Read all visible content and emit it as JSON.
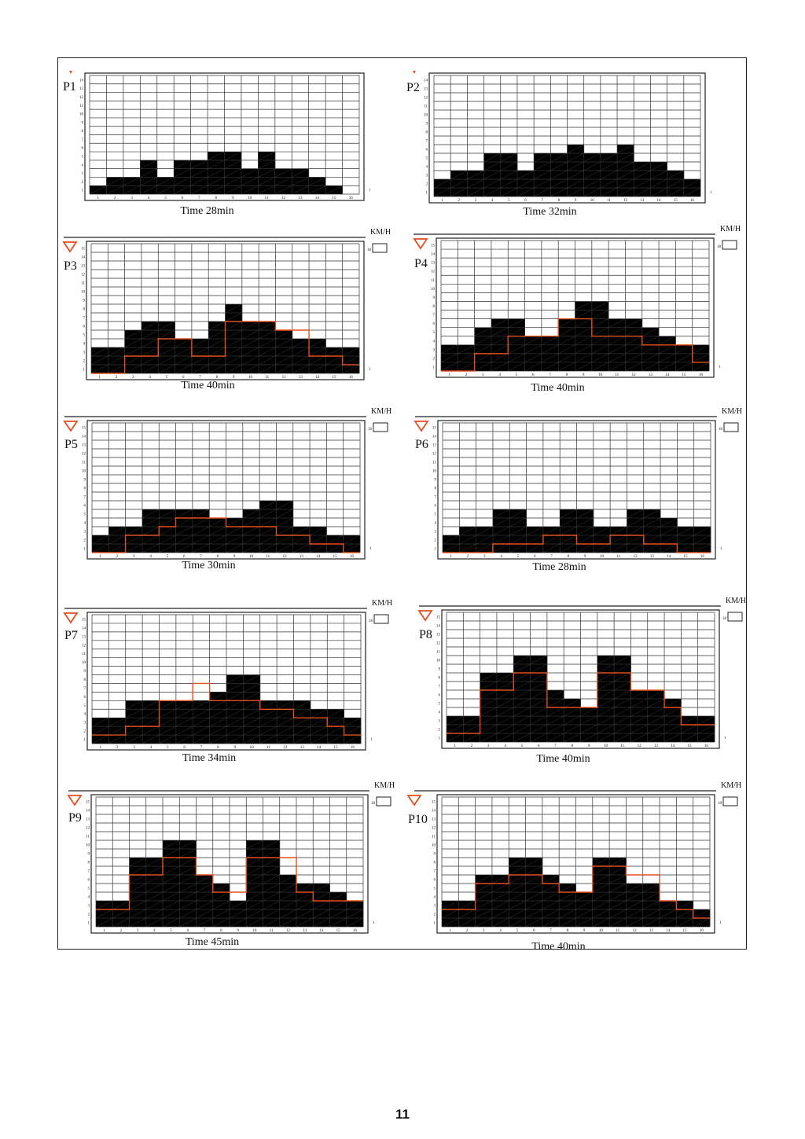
{
  "page": {
    "page_number": "11"
  },
  "chart_data": [
    {
      "type": "bar",
      "program": "P1",
      "time_label": "Time 28min",
      "show_speed_box": false,
      "show_triangle": false,
      "x": [
        1,
        2,
        3,
        4,
        5,
        6,
        7,
        8,
        9,
        10,
        11,
        12,
        13,
        14,
        15,
        16
      ],
      "y_ticks": [
        1,
        2,
        3,
        4,
        5,
        6,
        7,
        8,
        9,
        10,
        11,
        12,
        13,
        14
      ],
      "right_tick": "1",
      "ylim": [
        0,
        14
      ],
      "series": [
        {
          "role": "resistance",
          "values": [
            1,
            2,
            2,
            4,
            2,
            4,
            4,
            5,
            5,
            3,
            5,
            3,
            3,
            2,
            1,
            0
          ]
        }
      ]
    },
    {
      "type": "bar",
      "program": "P2",
      "time_label": "Time 32min",
      "show_speed_box": false,
      "show_triangle": false,
      "x": [
        1,
        2,
        3,
        4,
        5,
        6,
        7,
        8,
        9,
        10,
        11,
        12,
        13,
        14,
        15,
        16
      ],
      "y_ticks": [
        1,
        2,
        3,
        4,
        5,
        6,
        7,
        8,
        9,
        10,
        11,
        12,
        13,
        14
      ],
      "right_tick": "1",
      "ylim": [
        0,
        14
      ],
      "series": [
        {
          "role": "resistance",
          "values": [
            2,
            3,
            3,
            5,
            5,
            3,
            5,
            5,
            6,
            5,
            5,
            6,
            4,
            4,
            3,
            2
          ]
        }
      ]
    },
    {
      "type": "bar",
      "program": "P3",
      "time_label": "Time 40min",
      "speed_unit": "KM/H",
      "speed_tick": "18",
      "show_speed_box": true,
      "show_triangle": true,
      "x": [
        1,
        2,
        3,
        4,
        5,
        6,
        7,
        8,
        9,
        10,
        11,
        12,
        13,
        14,
        15,
        16
      ],
      "y_ticks": [
        1,
        2,
        3,
        4,
        5,
        6,
        7,
        8,
        9,
        10,
        11,
        12,
        13,
        14,
        15
      ],
      "right_tick": "1",
      "ylim": [
        0,
        15
      ],
      "series": [
        {
          "role": "resistance",
          "values": [
            3,
            3,
            5,
            6,
            6,
            4,
            4,
            6,
            8,
            6,
            6,
            5,
            4,
            4,
            3,
            3
          ]
        },
        {
          "role": "speed",
          "color": "#e0501e",
          "values": [
            0,
            0,
            2,
            2,
            4,
            4,
            2,
            2,
            6,
            6,
            6,
            5,
            5,
            2,
            2,
            1
          ]
        }
      ]
    },
    {
      "type": "bar",
      "program": "P4",
      "time_label": "Time 40min",
      "speed_unit": "KM/H",
      "speed_tick": "18",
      "show_speed_box": true,
      "show_triangle": true,
      "x": [
        1,
        2,
        3,
        4,
        5,
        6,
        7,
        8,
        9,
        10,
        11,
        12,
        13,
        14,
        15,
        16
      ],
      "y_ticks": [
        1,
        2,
        3,
        4,
        5,
        6,
        7,
        8,
        9,
        10,
        11,
        12,
        13,
        14,
        15
      ],
      "right_tick": "1",
      "ylim": [
        0,
        15
      ],
      "series": [
        {
          "role": "resistance",
          "values": [
            3,
            3,
            5,
            6,
            6,
            4,
            4,
            6,
            8,
            8,
            6,
            6,
            5,
            4,
            3,
            3
          ]
        },
        {
          "role": "speed",
          "color": "#e0501e",
          "values": [
            0,
            0,
            2,
            2,
            4,
            4,
            4,
            6,
            6,
            4,
            4,
            4,
            3,
            3,
            3,
            1
          ]
        }
      ]
    },
    {
      "type": "bar",
      "program": "P5",
      "time_label": "Time 30min",
      "speed_unit": "KM/H",
      "speed_tick": "16",
      "show_speed_box": true,
      "show_triangle": true,
      "x": [
        1,
        2,
        3,
        4,
        5,
        6,
        7,
        8,
        9,
        10,
        11,
        12,
        13,
        14,
        15,
        16
      ],
      "y_ticks": [
        1,
        2,
        3,
        4,
        5,
        6,
        7,
        8,
        9,
        10,
        11,
        12,
        13,
        14,
        15
      ],
      "right_tick": "1",
      "ylim": [
        0,
        15
      ],
      "series": [
        {
          "role": "resistance",
          "values": [
            2,
            3,
            3,
            5,
            5,
            5,
            5,
            4,
            4,
            5,
            6,
            6,
            3,
            3,
            2,
            2
          ]
        },
        {
          "role": "speed",
          "color": "#e0501e",
          "values": [
            0,
            0,
            2,
            2,
            3,
            4,
            4,
            4,
            3,
            3,
            3,
            2,
            2,
            1,
            1,
            0
          ]
        }
      ]
    },
    {
      "type": "bar",
      "program": "P6",
      "time_label": "Time 28min",
      "speed_unit": "KM/H",
      "speed_tick": "18",
      "show_speed_box": true,
      "show_triangle": true,
      "x": [
        1,
        2,
        3,
        4,
        5,
        6,
        7,
        8,
        9,
        10,
        11,
        12,
        13,
        14,
        15,
        16
      ],
      "y_ticks": [
        1,
        2,
        3,
        4,
        5,
        6,
        7,
        8,
        9,
        10,
        11,
        12,
        13,
        14,
        15
      ],
      "right_tick": "1",
      "ylim": [
        0,
        15
      ],
      "series": [
        {
          "role": "resistance",
          "values": [
            2,
            3,
            3,
            5,
            5,
            3,
            3,
            5,
            5,
            3,
            3,
            5,
            5,
            4,
            3,
            3
          ]
        },
        {
          "role": "speed",
          "color": "#e0501e",
          "values": [
            0,
            0,
            0,
            1,
            1,
            1,
            2,
            2,
            1,
            1,
            2,
            2,
            1,
            1,
            0,
            0
          ]
        }
      ]
    },
    {
      "type": "bar",
      "program": "P7",
      "time_label": "Time 34min",
      "speed_unit": "KM/H",
      "speed_tick": "18",
      "show_speed_box": true,
      "show_triangle": true,
      "x": [
        1,
        2,
        3,
        4,
        5,
        6,
        7,
        8,
        9,
        10,
        11,
        12,
        13,
        14,
        15,
        16
      ],
      "y_ticks": [
        1,
        2,
        3,
        4,
        5,
        6,
        7,
        8,
        9,
        10,
        11,
        12,
        13,
        14,
        15
      ],
      "right_tick": "1",
      "ylim": [
        0,
        15
      ],
      "series": [
        {
          "role": "resistance",
          "values": [
            3,
            3,
            5,
            5,
            5,
            5,
            5,
            6,
            8,
            8,
            5,
            5,
            5,
            4,
            4,
            3
          ]
        },
        {
          "role": "speed",
          "color": "#e0501e",
          "values": [
            1,
            1,
            2,
            2,
            5,
            5,
            7,
            5,
            5,
            5,
            4,
            4,
            3,
            3,
            2,
            1
          ]
        }
      ]
    },
    {
      "type": "bar",
      "program": "P8",
      "time_label": "Time 40min",
      "speed_unit": "KM/H",
      "speed_tick": "18",
      "show_speed_box": true,
      "show_triangle": true,
      "x": [
        1,
        2,
        3,
        4,
        5,
        6,
        7,
        8,
        9,
        10,
        11,
        12,
        13,
        14,
        15,
        16
      ],
      "y_ticks": [
        1,
        2,
        3,
        4,
        5,
        6,
        7,
        8,
        9,
        10,
        11,
        12,
        13,
        14,
        15
      ],
      "right_tick": "1",
      "ylim": [
        0,
        15
      ],
      "series": [
        {
          "role": "resistance",
          "values": [
            3,
            3,
            8,
            8,
            10,
            10,
            6,
            5,
            4,
            10,
            10,
            6,
            6,
            5,
            3,
            3
          ]
        },
        {
          "role": "speed",
          "color": "#e0501e",
          "values": [
            1,
            1,
            6,
            6,
            8,
            8,
            4,
            4,
            4,
            8,
            8,
            6,
            6,
            4,
            2,
            2
          ]
        }
      ]
    },
    {
      "type": "bar",
      "program": "P9",
      "time_label": "Time 45min",
      "speed_unit": "KM/H",
      "speed_tick": "18",
      "show_speed_box": true,
      "show_triangle": true,
      "x": [
        1,
        2,
        3,
        4,
        5,
        6,
        7,
        8,
        9,
        10,
        11,
        12,
        13,
        14,
        15,
        16
      ],
      "y_ticks": [
        1,
        2,
        3,
        4,
        5,
        6,
        7,
        8,
        9,
        10,
        11,
        12,
        13,
        14,
        15
      ],
      "right_tick": "1",
      "ylim": [
        0,
        15
      ],
      "series": [
        {
          "role": "resistance",
          "values": [
            3,
            3,
            8,
            8,
            10,
            10,
            6,
            5,
            3,
            10,
            10,
            6,
            5,
            5,
            4,
            3
          ]
        },
        {
          "role": "speed",
          "color": "#e0501e",
          "values": [
            2,
            2,
            6,
            6,
            8,
            8,
            6,
            4,
            4,
            8,
            8,
            8,
            4,
            3,
            3,
            3
          ]
        }
      ]
    },
    {
      "type": "bar",
      "program": "P10",
      "time_label": "Time 40min",
      "speed_unit": "KM/H",
      "speed_tick": "18",
      "show_speed_box": true,
      "show_triangle": true,
      "x": [
        1,
        2,
        3,
        4,
        5,
        6,
        7,
        8,
        9,
        10,
        11,
        12,
        13,
        14,
        15,
        16
      ],
      "y_ticks": [
        1,
        2,
        3,
        4,
        5,
        6,
        7,
        8,
        9,
        10,
        11,
        12,
        13,
        14,
        15
      ],
      "right_tick": "1",
      "ylim": [
        0,
        15
      ],
      "series": [
        {
          "role": "resistance",
          "values": [
            3,
            3,
            6,
            6,
            8,
            8,
            6,
            5,
            4,
            8,
            8,
            5,
            5,
            3,
            3,
            2
          ]
        },
        {
          "role": "speed",
          "color": "#e0501e",
          "values": [
            2,
            2,
            5,
            5,
            6,
            6,
            5,
            4,
            4,
            7,
            7,
            6,
            6,
            3,
            2,
            1
          ]
        }
      ]
    }
  ]
}
